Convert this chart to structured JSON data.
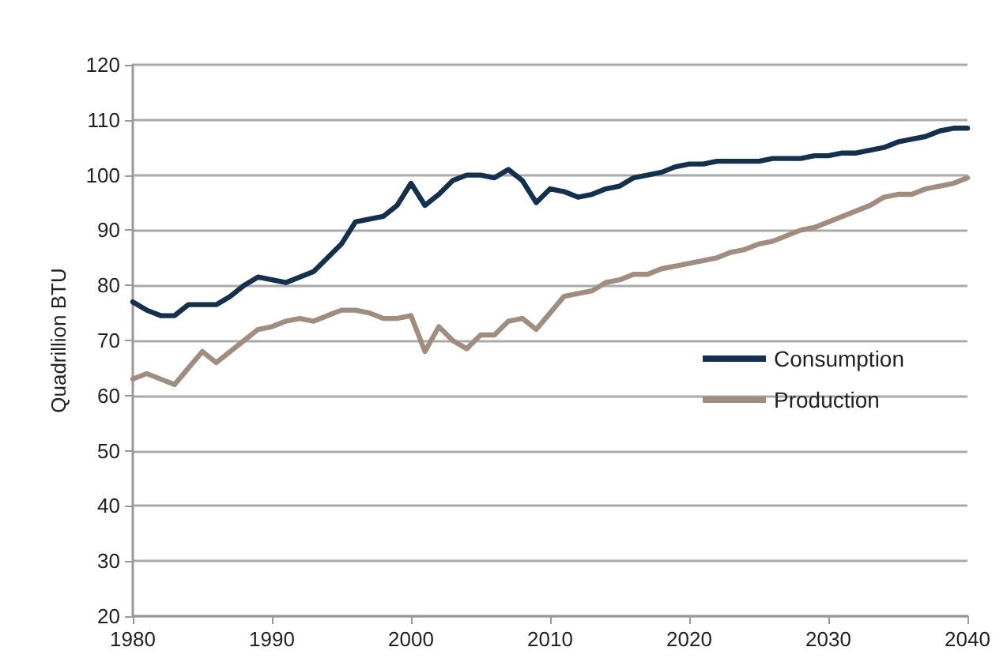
{
  "chart_data": {
    "type": "line",
    "ylabel": "Quadrillion BTU",
    "x": [
      1980,
      1981,
      1982,
      1983,
      1984,
      1985,
      1986,
      1987,
      1988,
      1989,
      1990,
      1991,
      1992,
      1993,
      1994,
      1995,
      1996,
      1997,
      1998,
      1999,
      2000,
      2001,
      2002,
      2003,
      2004,
      2005,
      2006,
      2007,
      2008,
      2009,
      2010,
      2011,
      2012,
      2013,
      2014,
      2015,
      2016,
      2017,
      2018,
      2019,
      2020,
      2021,
      2022,
      2023,
      2024,
      2025,
      2026,
      2027,
      2028,
      2029,
      2030,
      2031,
      2032,
      2033,
      2034,
      2035,
      2036,
      2037,
      2038,
      2039,
      2040
    ],
    "series": [
      {
        "name": "Consumption",
        "color": "#13304f",
        "values": [
          77,
          75.5,
          74.5,
          74.5,
          76.5,
          76.5,
          76.5,
          78,
          80,
          81.5,
          81,
          80.5,
          81.5,
          82.5,
          85,
          87.5,
          91.5,
          92,
          92.5,
          94.5,
          98.5,
          94.5,
          96.5,
          99,
          100,
          100,
          99.5,
          101,
          99,
          95,
          97.5,
          97,
          96,
          96.5,
          97.5,
          98,
          99.5,
          100,
          100.5,
          101.5,
          102,
          102,
          102.5,
          102.5,
          102.5,
          102.5,
          103,
          103,
          103,
          103.5,
          103.5,
          104,
          104,
          104.5,
          105,
          106,
          106.5,
          107,
          108,
          108.5,
          108.5
        ]
      },
      {
        "name": "Production",
        "color": "#a08d80",
        "values": [
          63,
          64,
          63,
          62,
          65,
          68,
          66,
          68,
          70,
          72,
          72.5,
          73.5,
          74,
          73.5,
          74.5,
          75.5,
          75.5,
          75,
          74,
          74,
          74.5,
          68,
          72.5,
          70,
          68.5,
          71,
          71,
          73.5,
          74,
          72,
          75,
          78,
          78.5,
          79,
          80.5,
          81,
          82,
          82,
          83,
          83.5,
          84,
          84.5,
          85,
          86,
          86.5,
          87.5,
          88,
          89,
          90,
          90.5,
          91.5,
          92.5,
          93.5,
          94.5,
          96,
          96.5,
          96.5,
          97.5,
          98,
          98.5,
          99.5
        ]
      }
    ],
    "xlim": [
      1980,
      2040
    ],
    "xticks": [
      1980,
      1990,
      2000,
      2010,
      2020,
      2030,
      2040
    ],
    "ylim": [
      20,
      120
    ],
    "yticks": [
      20,
      30,
      40,
      50,
      60,
      70,
      80,
      90,
      100,
      110,
      120
    ],
    "grid": "y",
    "legend": "right",
    "marker": "none",
    "line_style": "solid"
  }
}
